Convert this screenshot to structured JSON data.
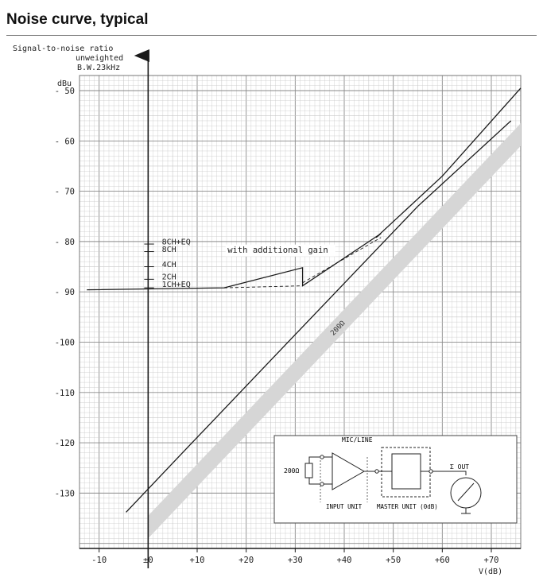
{
  "title": "Noise curve, typical",
  "chart_data": {
    "type": "line",
    "ylabel_lines": [
      "Signal-to-noise ratio",
      "unweighted",
      "B.W.23kHz"
    ],
    "yunit": "dBu",
    "xlabel": "V(dB)",
    "xlim": [
      -14,
      76
    ],
    "ylim": [
      -141,
      -47
    ],
    "x_ticks": [
      "-10",
      "±0",
      "+10",
      "+20",
      "+30",
      "+40",
      "+50",
      "+60",
      "+70"
    ],
    "x_tick_values": [
      -10,
      0,
      10,
      20,
      30,
      40,
      50,
      60,
      70
    ],
    "y_ticks": [
      "- 50",
      "- 60",
      "- 70",
      "- 80",
      "- 90",
      "-100",
      "-110",
      "-120",
      "-130"
    ],
    "y_tick_values": [
      -50,
      -60,
      -70,
      -80,
      -90,
      -100,
      -110,
      -120,
      -130
    ],
    "grid": true,
    "series": [
      {
        "values": [
          [
            -12.5,
            -89.6
          ],
          [
            15.5,
            -89.2
          ],
          [
            31.5,
            -85.2
          ],
          [
            31.5,
            -88.8
          ],
          [
            47.5,
            -78.4
          ],
          [
            46.5,
            -79.2
          ],
          [
            60,
            -67
          ],
          [
            76,
            -49.5
          ]
        ],
        "style": "solid"
      },
      {
        "values": [
          [
            -4.5,
            -133.8
          ],
          [
            7,
            -122
          ],
          [
            30,
            -98.5
          ],
          [
            55,
            -73
          ],
          [
            74,
            -56
          ]
        ],
        "style": "solid"
      },
      {
        "values": [
          [
            15.5,
            -89.2
          ],
          [
            31.5,
            -88.8
          ]
        ],
        "style": "dashed"
      },
      {
        "values": [
          [
            31.5,
            -88.2
          ],
          [
            47.5,
            -79.2
          ]
        ],
        "style": "dashed"
      }
    ],
    "band": {
      "label": "200Ω",
      "lower": [
        [
          0,
          -139
        ],
        [
          76,
          -61
        ]
      ],
      "upper": [
        [
          0,
          -134.5
        ],
        [
          76,
          -56.5
        ]
      ]
    },
    "channel_labels": [
      "8CH+EQ",
      "8CH",
      "4CH",
      "2CH",
      "1CH+EQ"
    ],
    "annotation": "with additional gain",
    "inset": {
      "top_label": "MIC/LINE",
      "source_label": "200Ω",
      "input_label": "INPUT UNIT",
      "master_label": "MASTER UNIT (0dB)",
      "out_label": "Σ OUT"
    }
  },
  "colors": {
    "grid_minor": "#c8c8c8",
    "grid_major": "#8a8a8a",
    "ink": "#1a1a1a",
    "band": "#d6d6d6"
  }
}
